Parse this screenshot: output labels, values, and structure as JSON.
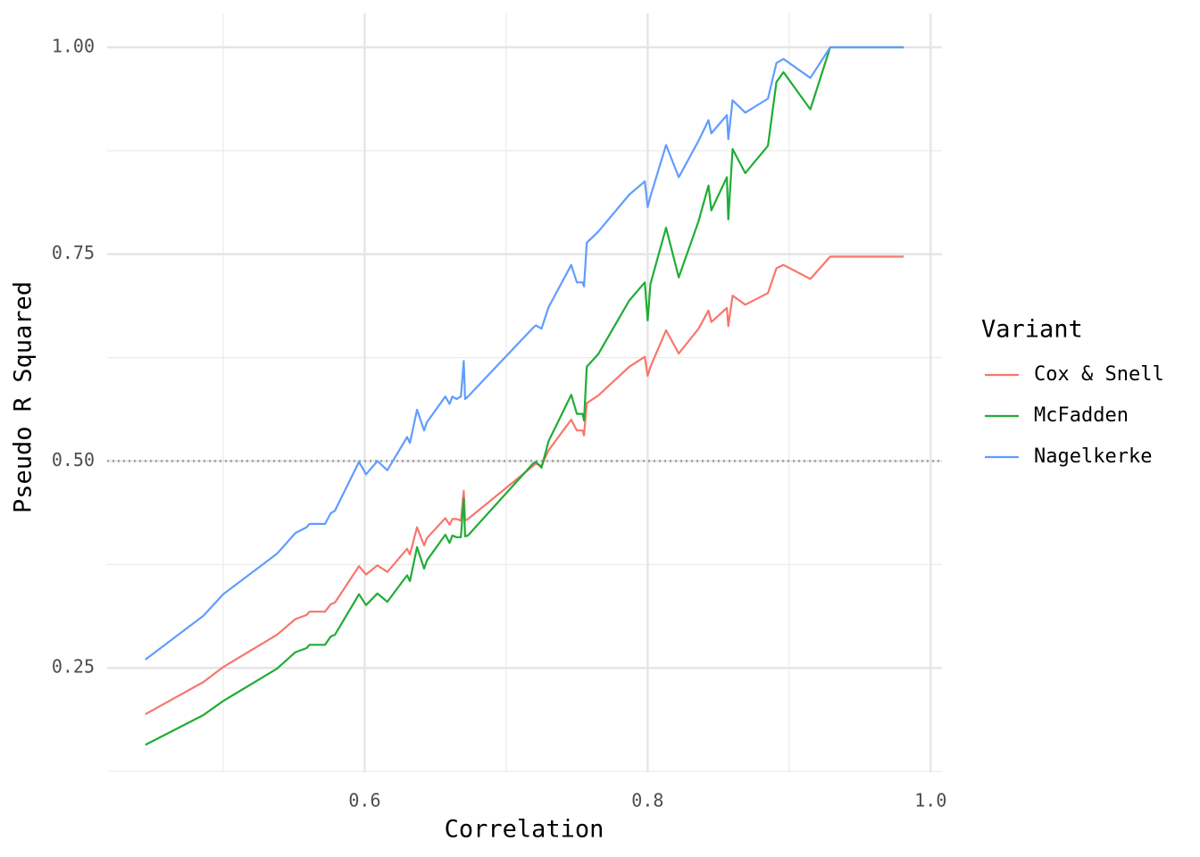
{
  "chart_data": {
    "type": "line",
    "x_label": "Correlation",
    "y_label": "Pseudo R Squared",
    "legend_title": "Variant",
    "legend_position": "right",
    "grid": true,
    "hline": 0.5,
    "xlim": [
      0.418,
      1.008
    ],
    "ylim": [
      0.124,
      1.041
    ],
    "xticks": [
      0.6,
      0.8,
      {
        "value": 1.0,
        "label": "1.0"
      }
    ],
    "minor_xticks": [
      0.5,
      0.7,
      0.9
    ],
    "yticks": [
      0.25,
      {
        "value": 0.5,
        "label": "0.50"
      },
      0.75,
      {
        "value": 1.0,
        "label": "1.00"
      }
    ],
    "minor_yticks": [
      0.125,
      0.375,
      0.625,
      0.875
    ],
    "x": [
      0.445,
      0.486,
      0.5,
      0.538,
      0.551,
      0.559,
      0.561,
      0.572,
      0.576,
      0.579,
      0.596,
      0.601,
      0.609,
      0.616,
      0.63,
      0.632,
      0.637,
      0.642,
      0.644,
      0.657,
      0.66,
      0.662,
      0.665,
      0.668,
      0.67,
      0.671,
      0.673,
      0.719,
      0.721,
      0.725,
      0.73,
      0.746,
      0.75,
      0.754,
      0.755,
      0.757,
      0.765,
      0.787,
      0.798,
      0.8,
      0.802,
      0.813,
      0.822,
      0.836,
      0.843,
      0.845,
      0.856,
      0.857,
      0.86,
      0.869,
      0.885,
      0.891,
      0.896,
      0.915,
      0.929,
      0.981
    ],
    "series": [
      {
        "name": "Cox & Snell",
        "color": "#F8766D",
        "values": [
          0.194,
          0.233,
          0.251,
          0.29,
          0.309,
          0.314,
          0.318,
          0.318,
          0.327,
          0.329,
          0.373,
          0.363,
          0.374,
          0.366,
          0.394,
          0.387,
          0.42,
          0.398,
          0.407,
          0.431,
          0.423,
          0.43,
          0.43,
          0.428,
          0.464,
          0.428,
          0.43,
          0.494,
          0.497,
          0.494,
          0.513,
          0.55,
          0.537,
          0.537,
          0.531,
          0.57,
          0.579,
          0.614,
          0.626,
          0.603,
          0.614,
          0.658,
          0.63,
          0.66,
          0.682,
          0.668,
          0.685,
          0.663,
          0.7,
          0.689,
          0.703,
          0.733,
          0.737,
          0.72,
          0.747,
          0.747
        ]
      },
      {
        "name": "McFadden",
        "color": "#1FAD36",
        "values": [
          0.157,
          0.193,
          0.21,
          0.249,
          0.269,
          0.274,
          0.278,
          0.278,
          0.288,
          0.29,
          0.339,
          0.326,
          0.34,
          0.33,
          0.362,
          0.355,
          0.396,
          0.37,
          0.38,
          0.411,
          0.401,
          0.41,
          0.408,
          0.408,
          0.455,
          0.409,
          0.41,
          0.497,
          0.499,
          0.492,
          0.524,
          0.58,
          0.557,
          0.557,
          0.549,
          0.614,
          0.629,
          0.694,
          0.716,
          0.67,
          0.714,
          0.782,
          0.722,
          0.79,
          0.833,
          0.803,
          0.843,
          0.792,
          0.877,
          0.848,
          0.881,
          0.958,
          0.97,
          0.925,
          1.0,
          1.0
        ]
      },
      {
        "name": "Nagelkerke",
        "color": "#619CFF",
        "values": [
          0.26,
          0.313,
          0.339,
          0.388,
          0.413,
          0.42,
          0.424,
          0.424,
          0.437,
          0.44,
          0.499,
          0.484,
          0.5,
          0.489,
          0.529,
          0.522,
          0.562,
          0.537,
          0.547,
          0.578,
          0.569,
          0.578,
          0.575,
          0.578,
          0.621,
          0.575,
          0.578,
          0.661,
          0.664,
          0.66,
          0.686,
          0.737,
          0.716,
          0.716,
          0.711,
          0.764,
          0.777,
          0.822,
          0.838,
          0.807,
          0.82,
          0.882,
          0.843,
          0.887,
          0.912,
          0.896,
          0.918,
          0.889,
          0.936,
          0.921,
          0.938,
          0.981,
          0.986,
          0.963,
          1.0,
          1.0
        ]
      }
    ]
  }
}
